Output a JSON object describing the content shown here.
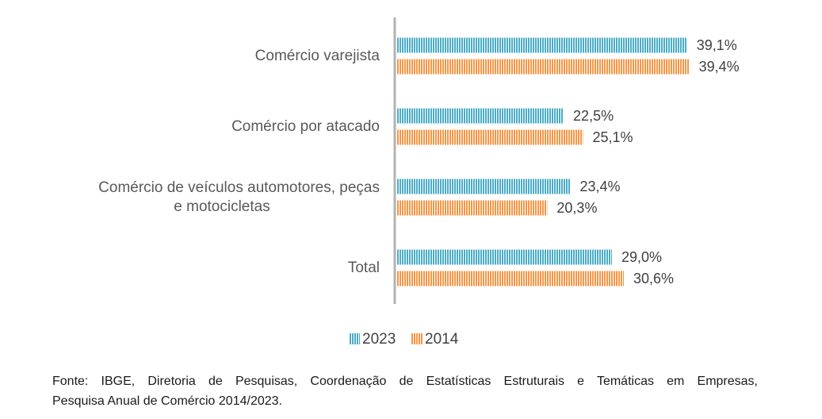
{
  "chart_data": {
    "type": "bar",
    "orientation": "horizontal",
    "categories": [
      [
        "Comércio varejista"
      ],
      [
        "Comércio por atacado"
      ],
      [
        "Comércio de veículos automotores, peças",
        "e motocicletas"
      ],
      [
        "Total"
      ]
    ],
    "series": [
      {
        "name": "2023",
        "color": "#4bacc6",
        "values": [
          39.1,
          22.5,
          23.4,
          29.0
        ],
        "labels": [
          "39,1%",
          "22,5%",
          "23,4%",
          "29,0%"
        ]
      },
      {
        "name": "2014",
        "color": "#f79646",
        "values": [
          39.4,
          25.1,
          20.3,
          30.6
        ],
        "labels": [
          "39,4%",
          "25,1%",
          "20,3%",
          "30,6%"
        ]
      }
    ],
    "xlim": [
      0,
      50
    ],
    "legend_position": "bottom-center",
    "grid": false
  },
  "source": {
    "line1": "Fonte: IBGE, Diretoria de Pesquisas, Coordenação de Estatísticas Estruturais e Temáticas em Empresas,",
    "line2": "Pesquisa Anual de Comércio 2014/2023."
  }
}
